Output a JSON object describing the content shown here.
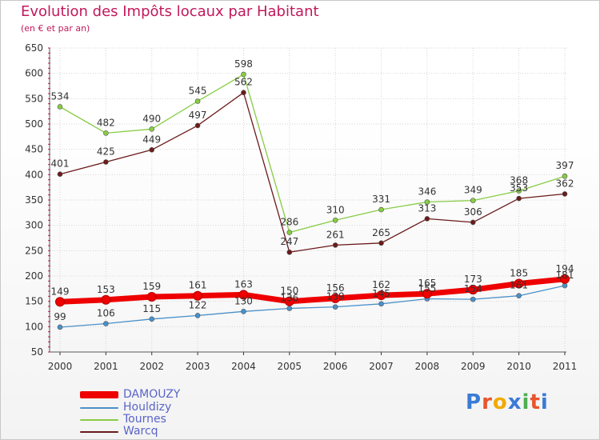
{
  "header": {
    "title": "Evolution des Impôts locaux par Habitant",
    "subtitle": "(en € et par an)"
  },
  "logo": {
    "text": "Proxiti",
    "letter_colors": [
      "#3a7bd5",
      "#e8552b",
      "#f2a900",
      "#3a7bd5",
      "#4caf50",
      "#e8552b",
      "#3a7bd5"
    ]
  },
  "chart_data": {
    "type": "line",
    "title": "Evolution des Impôts locaux par Habitant",
    "subtitle": "(en € et par an)",
    "xlabel": "",
    "ylabel": "",
    "categories": [
      "2000",
      "2001",
      "2002",
      "2003",
      "2004",
      "2005",
      "2006",
      "2007",
      "2008",
      "2009",
      "2010",
      "2011"
    ],
    "ylim": [
      50,
      650
    ],
    "yticks": [
      50,
      100,
      150,
      200,
      250,
      300,
      350,
      400,
      450,
      500,
      550,
      600,
      650
    ],
    "grid": true,
    "legend_position": "bottom-left",
    "series": [
      {
        "name": "DAMOUZY",
        "color": "#ee0000",
        "emphasis": "thick",
        "values": [
          149,
          153,
          159,
          161,
          163,
          150,
          156,
          162,
          165,
          173,
          185,
          194
        ],
        "value_labels": [
          "149",
          "153",
          "159",
          "161",
          "163",
          "150",
          "156",
          "162",
          "165",
          "173",
          "185",
          "194"
        ]
      },
      {
        "name": "Houldizy",
        "color": "#4a90c8",
        "emphasis": "thin",
        "values": [
          99,
          106,
          115,
          122,
          130,
          136,
          139,
          145,
          155,
          154,
          161,
          181
        ],
        "value_labels": [
          "99",
          "106",
          "115",
          "122",
          "130",
          "136",
          "139",
          "145",
          "155",
          "154",
          "161",
          "181"
        ]
      },
      {
        "name": "Tournes",
        "color": "#88cc44",
        "emphasis": "thin",
        "values": [
          534,
          482,
          490,
          545,
          598,
          286,
          310,
          331,
          346,
          349,
          368,
          397
        ],
        "value_labels": [
          "534",
          "482",
          "490",
          "545",
          "598",
          "286",
          "310",
          "331",
          "346",
          "349",
          "368",
          "397"
        ]
      },
      {
        "name": "Warcq",
        "color": "#6b1a1a",
        "emphasis": "thin",
        "values": [
          401,
          425,
          449,
          497,
          562,
          247,
          261,
          265,
          313,
          306,
          353,
          362
        ],
        "value_labels": [
          "401",
          "425",
          "449",
          "497",
          "562",
          "247",
          "261",
          "265",
          "313",
          "306",
          "353",
          "362"
        ]
      }
    ]
  }
}
